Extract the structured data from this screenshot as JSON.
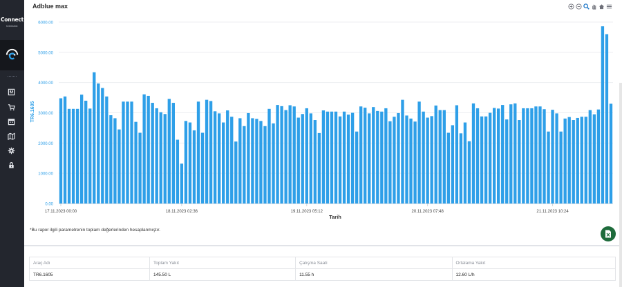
{
  "sidebar": {
    "logo_text": "Connect",
    "logo_subtext": "telematic",
    "icons": [
      "report-icon",
      "cart-icon",
      "calendar-icon",
      "map-icon",
      "settings-icon",
      "lock-icon"
    ]
  },
  "chart": {
    "title": "Adblue max",
    "toolbar_icons": [
      "zoom-in-icon",
      "zoom-out-icon",
      "magnify-icon",
      "pan-hand-icon",
      "home-icon",
      "menu-icon"
    ]
  },
  "chart_data": {
    "type": "bar",
    "ylabel": "TR6.1605",
    "xlabel": "Tarih",
    "ylim": [
      0,
      6000
    ],
    "yticks": [
      "0.00",
      "1000.00",
      "2000.00",
      "3000.00",
      "4000.00",
      "5000.00",
      "6000.00"
    ],
    "xtick_labels": [
      {
        "index": 0,
        "label": "17.11.2023 00:00"
      },
      {
        "index": 29,
        "label": "18.11.2023 02:36"
      },
      {
        "index": 59,
        "label": "19.11.2023 05:12"
      },
      {
        "index": 88,
        "label": "20.11.2023 07:48"
      },
      {
        "index": 118,
        "label": "21.11.2023 10:24"
      }
    ],
    "color": "#2e9fe8",
    "values": [
      3480,
      3540,
      3130,
      3130,
      3130,
      3600,
      3400,
      3140,
      4340,
      3970,
      3820,
      3540,
      2920,
      2820,
      2450,
      3370,
      3370,
      3370,
      2700,
      2340,
      3610,
      3560,
      3330,
      3150,
      3020,
      2960,
      3460,
      3330,
      2110,
      1320,
      2730,
      2680,
      2420,
      3370,
      2340,
      3430,
      3390,
      3050,
      2980,
      2680,
      3080,
      2870,
      2050,
      2820,
      2560,
      2990,
      2820,
      2800,
      2730,
      2560,
      3130,
      2650,
      3260,
      3220,
      3090,
      3250,
      3210,
      2840,
      2960,
      3150,
      2980,
      2760,
      2330,
      3080,
      3040,
      3040,
      3040,
      2880,
      3040,
      2940,
      3000,
      2380,
      3210,
      3170,
      2980,
      3190,
      3060,
      3040,
      3150,
      2720,
      2870,
      2990,
      3430,
      2910,
      2810,
      2710,
      3370,
      3040,
      2840,
      2890,
      3240,
      3090,
      3090,
      2340,
      2590,
      3250,
      2320,
      2680,
      2060,
      3310,
      3150,
      2880,
      2880,
      3000,
      3160,
      3140,
      3260,
      2780,
      3280,
      3310,
      2760,
      3150,
      3150,
      3150,
      3210,
      3210,
      3120,
      2380,
      3100,
      2980,
      2380,
      2810,
      2860,
      2760,
      2830,
      2870,
      2870,
      3090,
      2950,
      3110,
      5860,
      5600,
      3300
    ]
  },
  "footnote": "*Bu rapor ilgili parametrenin toplam değerlerinden hesaplanmıştır.",
  "summary_table": {
    "headers": [
      "Araç Adı",
      "Toplam Yakıt",
      "Çalışma Saati",
      "Ortalama Yakıt"
    ],
    "row": [
      "TR6.1605",
      "145.50 L",
      "11.55 h",
      "12.60 L/h"
    ]
  }
}
